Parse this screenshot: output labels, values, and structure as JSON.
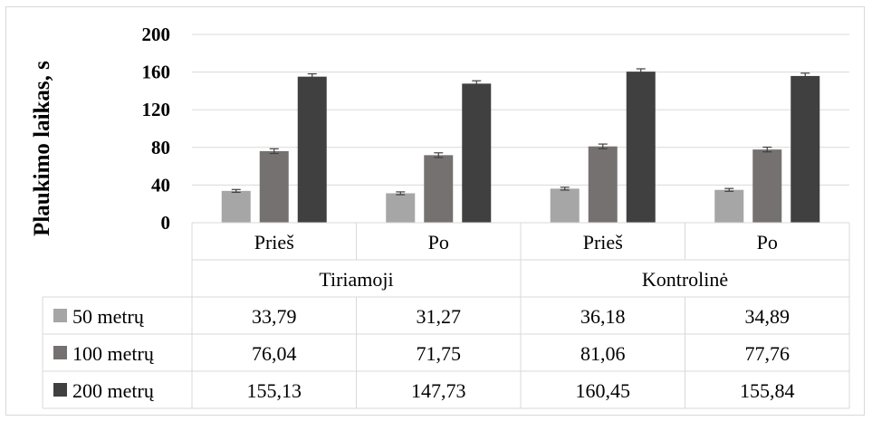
{
  "chart_data": {
    "type": "bar",
    "title": "",
    "xlabel": "",
    "ylabel": "Plaukimo laikas, s",
    "ylim": [
      0,
      200
    ],
    "yticks": [
      0,
      40,
      80,
      120,
      160,
      200
    ],
    "grid": "horizontal",
    "legend": "in data table, left",
    "groups": [
      {
        "name": "Tiriamoji",
        "categories": [
          "Prieš",
          "Po"
        ]
      },
      {
        "name": "Kontrolinė",
        "categories": [
          "Prieš",
          "Po"
        ]
      }
    ],
    "categories": [
      "Prieš",
      "Po",
      "Prieš",
      "Po"
    ],
    "series": [
      {
        "name": "50 metrų",
        "color": "#a6a6a6",
        "values": [
          33.79,
          31.27,
          36.18,
          34.89
        ],
        "labels": [
          "33,79",
          "31,27",
          "36,18",
          "34,89"
        ],
        "error": [
          1.5,
          1.5,
          1.5,
          1.5
        ]
      },
      {
        "name": "100 metrų",
        "color": "#767171",
        "values": [
          76.04,
          71.75,
          81.06,
          77.76
        ],
        "labels": [
          "76,04",
          "71,75",
          "81,06",
          "77,76"
        ],
        "error": [
          2.5,
          2.5,
          2.5,
          2.5
        ]
      },
      {
        "name": "200 metrų",
        "color": "#404040",
        "values": [
          155.13,
          147.73,
          160.45,
          155.84
        ],
        "labels": [
          "155,13",
          "147,73",
          "160,45",
          "155,84"
        ],
        "error": [
          3,
          3,
          3,
          3
        ]
      }
    ]
  }
}
